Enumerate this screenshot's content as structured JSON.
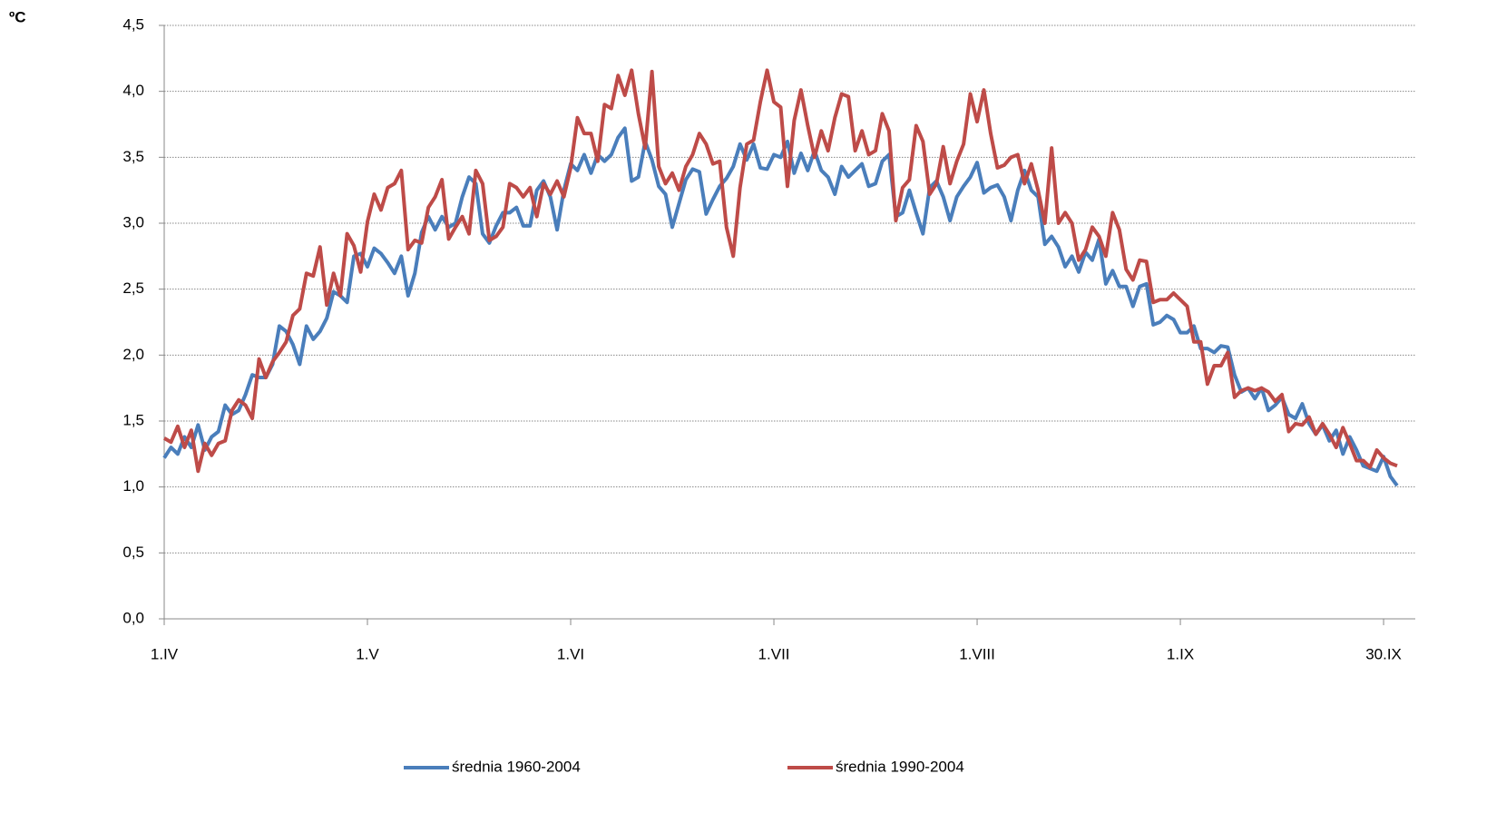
{
  "chart_data": {
    "type": "line",
    "y_label": "ºC",
    "categories": [
      "1.IV",
      null,
      null,
      null,
      null,
      null,
      null,
      null,
      null,
      null,
      null,
      null,
      null,
      null,
      null,
      null,
      null,
      null,
      null,
      null,
      null,
      null,
      null,
      null,
      null,
      null,
      null,
      null,
      null,
      null,
      "1.V",
      null,
      null,
      null,
      null,
      null,
      null,
      null,
      null,
      null,
      null,
      null,
      null,
      null,
      null,
      null,
      null,
      null,
      null,
      null,
      null,
      null,
      null,
      null,
      null,
      null,
      null,
      null,
      null,
      null,
      "1.VI",
      null,
      null,
      null,
      null,
      null,
      null,
      null,
      null,
      null,
      null,
      null,
      null,
      null,
      null,
      null,
      null,
      null,
      null,
      null,
      null,
      null,
      null,
      null,
      null,
      null,
      null,
      null,
      null,
      null,
      "1.VII",
      null,
      null,
      null,
      null,
      null,
      null,
      null,
      null,
      null,
      null,
      null,
      null,
      null,
      null,
      null,
      null,
      null,
      null,
      null,
      null,
      null,
      null,
      null,
      null,
      null,
      null,
      null,
      null,
      null,
      "1.VIII",
      null,
      null,
      null,
      null,
      null,
      null,
      null,
      null,
      null,
      null,
      null,
      null,
      null,
      null,
      null,
      null,
      null,
      null,
      null,
      null,
      null,
      null,
      null,
      null,
      null,
      null,
      null,
      null,
      null,
      "1.IX",
      null,
      null,
      null,
      null,
      null,
      null,
      null,
      null,
      null,
      null,
      null,
      null,
      null,
      null,
      null,
      null,
      null,
      null,
      null,
      null,
      null,
      null,
      null,
      null,
      null,
      null,
      null,
      null,
      null,
      "30.IX",
      null,
      null
    ],
    "series": [
      {
        "name": "średnia 1960-2004",
        "color": "#4a7ebb",
        "values": [
          1.22,
          1.3,
          1.25,
          1.38,
          1.3,
          1.47,
          1.28,
          1.38,
          1.42,
          1.62,
          1.55,
          1.58,
          1.7,
          1.85,
          1.83,
          1.83,
          1.93,
          2.22,
          2.18,
          2.08,
          1.93,
          2.22,
          2.12,
          2.18,
          2.28,
          2.48,
          2.45,
          2.4,
          2.75,
          2.77,
          2.67,
          2.81,
          2.77,
          2.7,
          2.62,
          2.75,
          2.45,
          2.62,
          2.93,
          3.05,
          2.95,
          3.05,
          2.97,
          3.0,
          3.2,
          3.35,
          3.3,
          2.92,
          2.85,
          2.98,
          3.08,
          3.08,
          3.12,
          2.98,
          2.98,
          3.25,
          3.32,
          3.2,
          2.95,
          3.25,
          3.45,
          3.4,
          3.52,
          3.38,
          3.52,
          3.47,
          3.52,
          3.65,
          3.72,
          3.32,
          3.35,
          3.62,
          3.48,
          3.28,
          3.22,
          2.97,
          3.15,
          3.33,
          3.41,
          3.39,
          3.07,
          3.18,
          3.28,
          3.34,
          3.43,
          3.6,
          3.48,
          3.6,
          3.42,
          3.41,
          3.52,
          3.5,
          3.62,
          3.38,
          3.53,
          3.4,
          3.55,
          3.4,
          3.35,
          3.22,
          3.43,
          3.35,
          3.4,
          3.45,
          3.28,
          3.3,
          3.47,
          3.52,
          3.05,
          3.08,
          3.25,
          3.08,
          2.92,
          3.27,
          3.32,
          3.2,
          3.02,
          3.2,
          3.28,
          3.35,
          3.46,
          3.23,
          3.27,
          3.29,
          3.2,
          3.02,
          3.25,
          3.4,
          3.25,
          3.2,
          2.84,
          2.9,
          2.82,
          2.67,
          2.75,
          2.63,
          2.78,
          2.72,
          2.88,
          2.54,
          2.64,
          2.52,
          2.52,
          2.37,
          2.52,
          2.54,
          2.23,
          2.25,
          2.3,
          2.27,
          2.17,
          2.17,
          2.22,
          2.05,
          2.05,
          2.02,
          2.07,
          2.06,
          1.85,
          1.72,
          1.75,
          1.67,
          1.75,
          1.58,
          1.62,
          1.68,
          1.55,
          1.52,
          1.63,
          1.48,
          1.4,
          1.47,
          1.35,
          1.43,
          1.25,
          1.38,
          1.28,
          1.16,
          1.14,
          1.12,
          1.23,
          1.08,
          1.01
        ]
      },
      {
        "name": "średnia 1990-2004",
        "color": "#be4b48",
        "values": [
          1.37,
          1.34,
          1.46,
          1.3,
          1.43,
          1.12,
          1.33,
          1.24,
          1.33,
          1.35,
          1.58,
          1.66,
          1.62,
          1.52,
          1.97,
          1.83,
          1.95,
          2.02,
          2.1,
          2.3,
          2.35,
          2.62,
          2.6,
          2.82,
          2.38,
          2.62,
          2.45,
          2.92,
          2.83,
          2.63,
          3.01,
          3.22,
          3.1,
          3.27,
          3.3,
          3.4,
          2.8,
          2.87,
          2.85,
          3.12,
          3.2,
          3.33,
          2.88,
          2.97,
          3.05,
          2.92,
          3.4,
          3.3,
          2.87,
          2.9,
          2.97,
          3.3,
          3.27,
          3.2,
          3.27,
          3.05,
          3.3,
          3.22,
          3.32,
          3.2,
          3.42,
          3.8,
          3.68,
          3.68,
          3.47,
          3.9,
          3.87,
          4.12,
          3.97,
          4.16,
          3.83,
          3.57,
          4.15,
          3.43,
          3.3,
          3.38,
          3.25,
          3.43,
          3.52,
          3.68,
          3.6,
          3.45,
          3.47,
          2.97,
          2.75,
          3.27,
          3.6,
          3.63,
          3.92,
          4.16,
          3.92,
          3.88,
          3.28,
          3.78,
          4.01,
          3.74,
          3.5,
          3.7,
          3.55,
          3.8,
          3.98,
          3.96,
          3.55,
          3.7,
          3.52,
          3.55,
          3.83,
          3.7,
          3.02,
          3.27,
          3.33,
          3.74,
          3.62,
          3.22,
          3.3,
          3.58,
          3.3,
          3.47,
          3.6,
          3.98,
          3.77,
          4.01,
          3.68,
          3.42,
          3.44,
          3.5,
          3.52,
          3.3,
          3.45,
          3.25,
          3.0,
          3.57,
          3.0,
          3.08,
          3.0,
          2.72,
          2.8,
          2.97,
          2.9,
          2.75,
          3.08,
          2.95,
          2.65,
          2.57,
          2.72,
          2.71,
          2.4,
          2.42,
          2.42,
          2.47,
          2.42,
          2.37,
          2.1,
          2.1,
          1.78,
          1.92,
          1.92,
          2.02,
          1.68,
          1.73,
          1.75,
          1.73,
          1.75,
          1.72,
          1.65,
          1.7,
          1.42,
          1.48,
          1.47,
          1.53,
          1.4,
          1.48,
          1.4,
          1.3,
          1.45,
          1.33,
          1.2,
          1.2,
          1.15,
          1.28,
          1.22,
          1.18,
          1.16
        ]
      }
    ],
    "ylim": [
      0,
      4.5
    ],
    "yticks": [
      {
        "value": 0,
        "label": "0,0"
      },
      {
        "value": 0.5,
        "label": "0,5"
      },
      {
        "value": 1,
        "label": "1,0"
      },
      {
        "value": 1.5,
        "label": "1,5"
      },
      {
        "value": 2,
        "label": "2,0"
      },
      {
        "value": 2.5,
        "label": "2,5"
      },
      {
        "value": 3,
        "label": "3,0"
      },
      {
        "value": 3.5,
        "label": "3,5"
      },
      {
        "value": 4,
        "label": "4,0"
      },
      {
        "value": 4.5,
        "label": "4,5"
      }
    ],
    "grid": true,
    "legend": "bottom"
  }
}
